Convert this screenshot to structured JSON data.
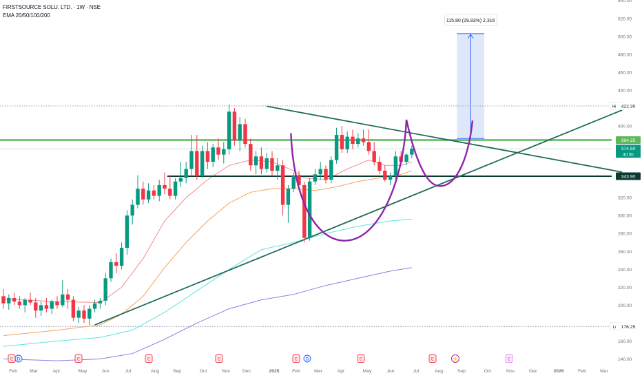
{
  "header": {
    "title": "FIRSTSOURCE SOLU. LTD. · 1W · NSE",
    "indicator": "EMA 20/50/100/200"
  },
  "colors": {
    "up": "#089981",
    "down": "#f23645",
    "ema20": "#f28b8b",
    "ema50": "#f5a25a",
    "ema100": "#5ce1e6",
    "ema200": "#8e7be0",
    "resistance": "#5cb85c",
    "support": "#0b3b30",
    "trend": "#1e6b5a",
    "cup": "#8e24aa",
    "measure": "#2962ff",
    "measure_fill": "#dbe5fb",
    "price_tag": "#089981"
  },
  "chart_data": {
    "type": "candlestick",
    "title": "FIRSTSOURCE SOLU. LTD. · 1W · NSE",
    "x_ticks": [
      "Feb",
      "Mar",
      "Apr",
      "May",
      "Jun",
      "Jul",
      "Aug",
      "Sep",
      "Oct",
      "Nov",
      "Dec",
      "2025",
      "Feb",
      "Mar",
      "Apr",
      "May",
      "Jun",
      "Jul",
      "Aug",
      "Sep",
      "Oct",
      "Nov",
      "Dec",
      "2026",
      "Feb",
      "Mar"
    ],
    "y_ticks": [
      140,
      160,
      176.25,
      200,
      220,
      240,
      260,
      280,
      300,
      320,
      343.9,
      374.5,
      384.25,
      400,
      422.3,
      440,
      460,
      480,
      500,
      520,
      540
    ],
    "ylim": [
      132,
      543
    ],
    "grid": false,
    "price_labels": {
      "high_label": "High",
      "high_value": "422.30",
      "low_label": "Low",
      "low_value": "176.25",
      "resistance_value": "384.25",
      "current_value": "374.50",
      "countdown": "4d 5h",
      "support_value": "343.90"
    },
    "annotations": {
      "measure_label": "115.80 (29.83%) 2,316",
      "measure_from": 386,
      "measure_to": 503,
      "resistance_level": 384.25,
      "support_level": 343.9,
      "high_level": 422.3,
      "low_level": 176.25,
      "last_price": 374.5
    },
    "trendlines": [
      {
        "name": "descending-trendline",
        "points": [
          {
            "x": 49,
            "y": 422
          },
          {
            "x": 78,
            "y": 344
          }
        ]
      },
      {
        "name": "ascending-trendline",
        "points": [
          {
            "x": 17,
            "y": 178
          },
          {
            "x": 78,
            "y": 414
          }
        ]
      }
    ],
    "candles": [
      {
        "i": 0,
        "o": 210,
        "h": 218,
        "l": 196,
        "c": 202
      },
      {
        "i": 1,
        "o": 202,
        "h": 212,
        "l": 195,
        "c": 208
      },
      {
        "i": 2,
        "o": 208,
        "h": 214,
        "l": 200,
        "c": 204
      },
      {
        "i": 3,
        "o": 204,
        "h": 210,
        "l": 196,
        "c": 200
      },
      {
        "i": 4,
        "o": 200,
        "h": 208,
        "l": 192,
        "c": 206
      },
      {
        "i": 5,
        "o": 206,
        "h": 214,
        "l": 200,
        "c": 203
      },
      {
        "i": 6,
        "o": 203,
        "h": 208,
        "l": 186,
        "c": 194
      },
      {
        "i": 7,
        "o": 194,
        "h": 204,
        "l": 188,
        "c": 200
      },
      {
        "i": 8,
        "o": 200,
        "h": 208,
        "l": 192,
        "c": 196
      },
      {
        "i": 9,
        "o": 196,
        "h": 206,
        "l": 190,
        "c": 204
      },
      {
        "i": 10,
        "o": 204,
        "h": 210,
        "l": 196,
        "c": 200
      },
      {
        "i": 11,
        "o": 200,
        "h": 228,
        "l": 198,
        "c": 212
      },
      {
        "i": 12,
        "o": 212,
        "h": 218,
        "l": 196,
        "c": 206
      },
      {
        "i": 13,
        "o": 206,
        "h": 210,
        "l": 182,
        "c": 186
      },
      {
        "i": 14,
        "o": 186,
        "h": 198,
        "l": 180,
        "c": 194
      },
      {
        "i": 15,
        "o": 194,
        "h": 200,
        "l": 180,
        "c": 185
      },
      {
        "i": 16,
        "o": 185,
        "h": 200,
        "l": 178,
        "c": 196
      },
      {
        "i": 17,
        "o": 196,
        "h": 206,
        "l": 192,
        "c": 202
      },
      {
        "i": 18,
        "o": 202,
        "h": 208,
        "l": 196,
        "c": 205
      },
      {
        "i": 19,
        "o": 205,
        "h": 236,
        "l": 200,
        "c": 230
      },
      {
        "i": 20,
        "o": 230,
        "h": 252,
        "l": 226,
        "c": 248
      },
      {
        "i": 21,
        "o": 248,
        "h": 258,
        "l": 236,
        "c": 244
      },
      {
        "i": 22,
        "o": 244,
        "h": 270,
        "l": 240,
        "c": 264
      },
      {
        "i": 23,
        "o": 264,
        "h": 306,
        "l": 256,
        "c": 300
      },
      {
        "i": 24,
        "o": 300,
        "h": 318,
        "l": 290,
        "c": 312
      },
      {
        "i": 25,
        "o": 312,
        "h": 345,
        "l": 308,
        "c": 330
      },
      {
        "i": 26,
        "o": 330,
        "h": 338,
        "l": 312,
        "c": 318
      },
      {
        "i": 27,
        "o": 318,
        "h": 336,
        "l": 314,
        "c": 328
      },
      {
        "i": 28,
        "o": 328,
        "h": 334,
        "l": 318,
        "c": 322
      },
      {
        "i": 29,
        "o": 322,
        "h": 340,
        "l": 316,
        "c": 334
      },
      {
        "i": 30,
        "o": 334,
        "h": 348,
        "l": 324,
        "c": 330
      },
      {
        "i": 31,
        "o": 330,
        "h": 344,
        "l": 318,
        "c": 322
      },
      {
        "i": 32,
        "o": 322,
        "h": 342,
        "l": 318,
        "c": 338
      },
      {
        "i": 33,
        "o": 338,
        "h": 360,
        "l": 332,
        "c": 342
      },
      {
        "i": 34,
        "o": 342,
        "h": 360,
        "l": 336,
        "c": 352
      },
      {
        "i": 35,
        "o": 352,
        "h": 390,
        "l": 344,
        "c": 372
      },
      {
        "i": 36,
        "o": 372,
        "h": 390,
        "l": 340,
        "c": 344
      },
      {
        "i": 37,
        "o": 344,
        "h": 378,
        "l": 342,
        "c": 372
      },
      {
        "i": 38,
        "o": 372,
        "h": 382,
        "l": 352,
        "c": 360
      },
      {
        "i": 39,
        "o": 360,
        "h": 380,
        "l": 354,
        "c": 376
      },
      {
        "i": 40,
        "o": 376,
        "h": 386,
        "l": 362,
        "c": 368
      },
      {
        "i": 41,
        "o": 368,
        "h": 382,
        "l": 358,
        "c": 374
      },
      {
        "i": 42,
        "o": 374,
        "h": 424,
        "l": 368,
        "c": 416
      },
      {
        "i": 43,
        "o": 416,
        "h": 420,
        "l": 378,
        "c": 384
      },
      {
        "i": 44,
        "o": 384,
        "h": 410,
        "l": 372,
        "c": 402
      },
      {
        "i": 45,
        "o": 402,
        "h": 408,
        "l": 376,
        "c": 380
      },
      {
        "i": 46,
        "o": 380,
        "h": 386,
        "l": 350,
        "c": 356
      },
      {
        "i": 47,
        "o": 356,
        "h": 372,
        "l": 346,
        "c": 366
      },
      {
        "i": 48,
        "o": 366,
        "h": 376,
        "l": 346,
        "c": 352
      },
      {
        "i": 49,
        "o": 352,
        "h": 370,
        "l": 348,
        "c": 364
      },
      {
        "i": 50,
        "o": 364,
        "h": 372,
        "l": 344,
        "c": 350
      },
      {
        "i": 51,
        "o": 350,
        "h": 364,
        "l": 340,
        "c": 356
      },
      {
        "i": 52,
        "o": 356,
        "h": 362,
        "l": 300,
        "c": 312
      },
      {
        "i": 53,
        "o": 312,
        "h": 334,
        "l": 292,
        "c": 330
      },
      {
        "i": 54,
        "o": 330,
        "h": 348,
        "l": 326,
        "c": 344
      },
      {
        "i": 55,
        "o": 344,
        "h": 350,
        "l": 328,
        "c": 334
      },
      {
        "i": 56,
        "o": 334,
        "h": 338,
        "l": 270,
        "c": 275
      },
      {
        "i": 57,
        "o": 275,
        "h": 342,
        "l": 272,
        "c": 338
      },
      {
        "i": 58,
        "o": 338,
        "h": 352,
        "l": 334,
        "c": 346
      },
      {
        "i": 59,
        "o": 346,
        "h": 360,
        "l": 340,
        "c": 352
      },
      {
        "i": 60,
        "o": 352,
        "h": 356,
        "l": 336,
        "c": 340
      },
      {
        "i": 61,
        "o": 340,
        "h": 366,
        "l": 336,
        "c": 362
      },
      {
        "i": 62,
        "o": 362,
        "h": 398,
        "l": 358,
        "c": 390
      },
      {
        "i": 63,
        "o": 390,
        "h": 400,
        "l": 370,
        "c": 374
      },
      {
        "i": 64,
        "o": 374,
        "h": 394,
        "l": 370,
        "c": 388
      },
      {
        "i": 65,
        "o": 388,
        "h": 396,
        "l": 374,
        "c": 380
      },
      {
        "i": 66,
        "o": 380,
        "h": 392,
        "l": 376,
        "c": 386
      },
      {
        "i": 67,
        "o": 386,
        "h": 396,
        "l": 378,
        "c": 382
      },
      {
        "i": 68,
        "o": 382,
        "h": 396,
        "l": 368,
        "c": 372
      },
      {
        "i": 69,
        "o": 372,
        "h": 382,
        "l": 356,
        "c": 360
      },
      {
        "i": 70,
        "o": 360,
        "h": 366,
        "l": 346,
        "c": 350
      },
      {
        "i": 71,
        "o": 350,
        "h": 356,
        "l": 338,
        "c": 340
      },
      {
        "i": 72,
        "o": 340,
        "h": 348,
        "l": 334,
        "c": 344
      },
      {
        "i": 73,
        "o": 344,
        "h": 372,
        "l": 340,
        "c": 366
      },
      {
        "i": 74,
        "o": 366,
        "h": 372,
        "l": 356,
        "c": 360
      },
      {
        "i": 75,
        "o": 360,
        "h": 370,
        "l": 356,
        "c": 368
      },
      {
        "i": 76,
        "o": 368,
        "h": 378,
        "l": 364,
        "c": 374.5
      }
    ],
    "series": [
      {
        "name": "EMA 20",
        "values": [
          [
            0,
            207
          ],
          [
            10,
            204
          ],
          [
            18,
            203
          ],
          [
            22,
            220
          ],
          [
            26,
            252
          ],
          [
            30,
            294
          ],
          [
            34,
            320
          ],
          [
            38,
            340
          ],
          [
            42,
            356
          ],
          [
            46,
            362
          ],
          [
            50,
            360
          ],
          [
            54,
            350
          ],
          [
            56,
            342
          ],
          [
            60,
            340
          ],
          [
            64,
            352
          ],
          [
            68,
            362
          ],
          [
            71,
            356
          ],
          [
            74,
            356
          ],
          [
            76,
            360
          ]
        ]
      },
      {
        "name": "EMA 50",
        "values": [
          [
            0,
            166
          ],
          [
            10,
            172
          ],
          [
            18,
            178
          ],
          [
            22,
            190
          ],
          [
            26,
            210
          ],
          [
            30,
            242
          ],
          [
            34,
            270
          ],
          [
            38,
            294
          ],
          [
            42,
            314
          ],
          [
            46,
            326
          ],
          [
            50,
            330
          ],
          [
            54,
            330
          ],
          [
            58,
            328
          ],
          [
            62,
            332
          ],
          [
            66,
            338
          ],
          [
            70,
            342
          ],
          [
            74,
            346
          ],
          [
            76,
            350
          ]
        ]
      },
      {
        "name": "EMA 100",
        "values": [
          [
            0,
            154
          ],
          [
            10,
            160
          ],
          [
            18,
            164
          ],
          [
            24,
            172
          ],
          [
            30,
            192
          ],
          [
            36,
            216
          ],
          [
            42,
            240
          ],
          [
            48,
            262
          ],
          [
            54,
            270
          ],
          [
            60,
            280
          ],
          [
            66,
            288
          ],
          [
            72,
            294
          ],
          [
            76,
            296
          ]
        ]
      },
      {
        "name": "EMA 200",
        "values": [
          [
            0,
            140
          ],
          [
            10,
            138
          ],
          [
            18,
            140
          ],
          [
            24,
            146
          ],
          [
            30,
            162
          ],
          [
            36,
            180
          ],
          [
            42,
            196
          ],
          [
            48,
            206
          ],
          [
            54,
            212
          ],
          [
            60,
            222
          ],
          [
            66,
            230
          ],
          [
            72,
            238
          ],
          [
            76,
            242
          ]
        ]
      }
    ],
    "events": [
      {
        "x": 1.5,
        "label": "E",
        "kind": "earnings"
      },
      {
        "x": 2.8,
        "label": "D",
        "kind": "dividend"
      },
      {
        "x": 14.5,
        "label": "E",
        "kind": "earnings"
      },
      {
        "x": 27.5,
        "label": "E",
        "kind": "earnings"
      },
      {
        "x": 40.5,
        "label": "E",
        "kind": "earnings"
      },
      {
        "x": 54.7,
        "label": "E",
        "kind": "earnings"
      },
      {
        "x": 56.7,
        "label": "D",
        "kind": "dividend"
      },
      {
        "x": 67,
        "label": "E",
        "kind": "earnings"
      },
      {
        "x": 80,
        "label": "E",
        "kind": "earnings"
      },
      {
        "x": 85.4,
        "label": "⚡",
        "kind": "split"
      },
      {
        "x": 94.8,
        "label": "E",
        "kind": "upcoming"
      }
    ]
  }
}
